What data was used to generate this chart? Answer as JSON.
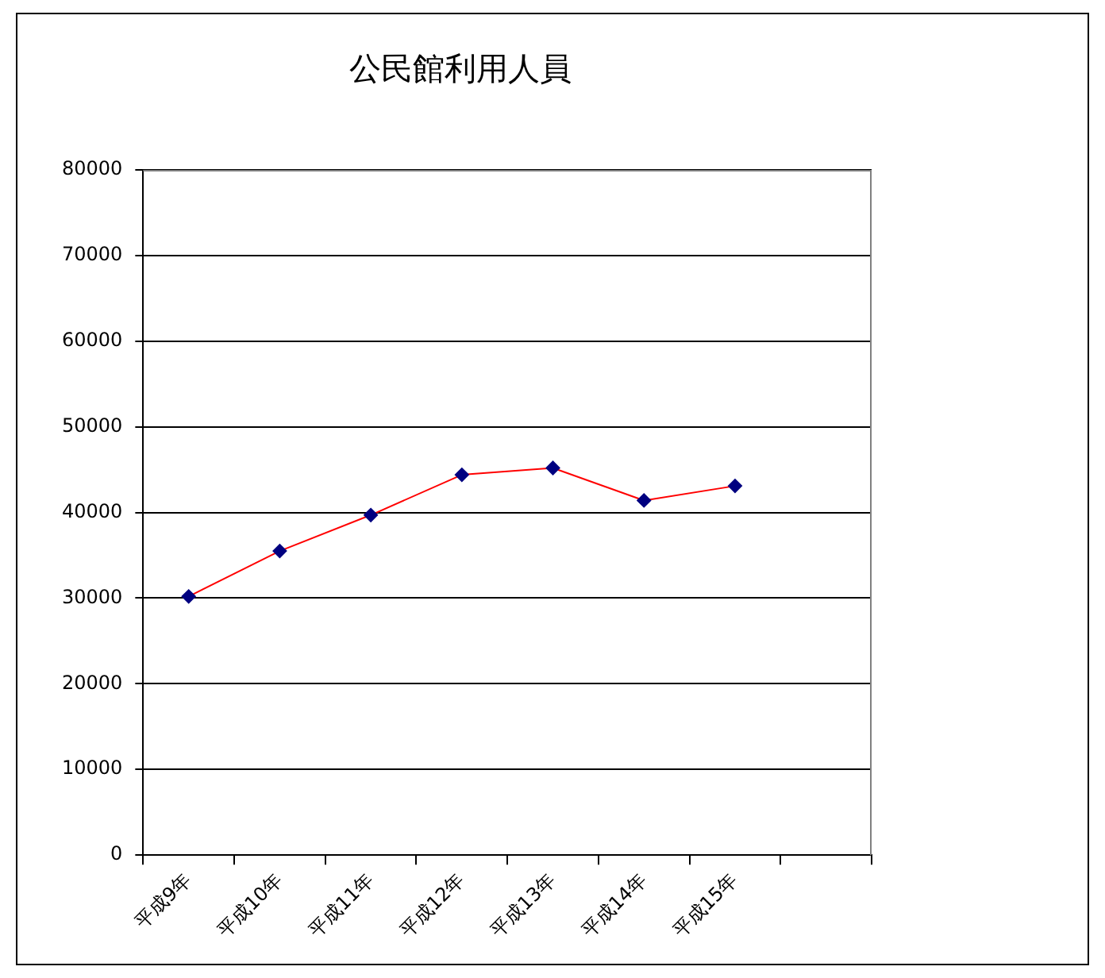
{
  "chart_data": {
    "type": "line",
    "title": "公民館利用人員",
    "categories": [
      "平成9年",
      "平成10年",
      "平成11年",
      "平成12年",
      "平成13年",
      "平成14年",
      "平成15年",
      null
    ],
    "series": [
      {
        "color": "#ff0000",
        "values": [
          30200,
          35500,
          39700,
          44400,
          45200,
          41400,
          43100,
          null
        ]
      }
    ],
    "ylim": [
      0,
      80000
    ],
    "yticks": [
      0,
      10000,
      20000,
      30000,
      40000,
      50000,
      60000,
      70000,
      80000
    ],
    "grid": "y",
    "legend": false,
    "marker": "diamond",
    "line_style": "solid"
  }
}
